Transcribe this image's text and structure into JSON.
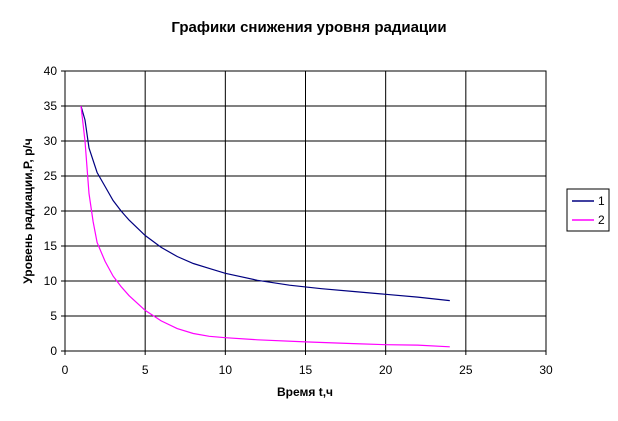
{
  "chart_data": {
    "type": "line",
    "title": "Графики снижения уровня радиации",
    "xlabel": "Время t,ч",
    "ylabel": "Уровень радиации,P, р/ч",
    "xlim": [
      0,
      30
    ],
    "ylim": [
      0,
      40
    ],
    "x_ticks": [
      "0",
      "5",
      "10",
      "15",
      "20",
      "25",
      "30"
    ],
    "y_ticks": [
      "0",
      "5",
      "10",
      "15",
      "20",
      "25",
      "30",
      "35",
      "40"
    ],
    "grid": true,
    "legend_position": "right",
    "series": [
      {
        "name": "1",
        "color": "#000080",
        "points": [
          [
            1,
            35
          ],
          [
            1.25,
            33
          ],
          [
            1.5,
            29
          ],
          [
            2,
            25.5
          ],
          [
            2.5,
            23.5
          ],
          [
            3,
            21.5
          ],
          [
            3.5,
            20
          ],
          [
            4,
            18.7
          ],
          [
            5,
            16.5
          ],
          [
            6,
            14.8
          ],
          [
            7,
            13.5
          ],
          [
            8,
            12.5
          ],
          [
            9,
            11.8
          ],
          [
            10,
            11.1
          ],
          [
            12,
            10.1
          ],
          [
            14,
            9.4
          ],
          [
            16,
            8.9
          ],
          [
            18,
            8.5
          ],
          [
            20,
            8.1
          ],
          [
            22,
            7.7
          ],
          [
            24,
            7.2
          ]
        ]
      },
      {
        "name": "2",
        "color": "#ff00ff",
        "points": [
          [
            1,
            35
          ],
          [
            1.25,
            30
          ],
          [
            1.5,
            22.5
          ],
          [
            1.75,
            18.5
          ],
          [
            2,
            15.5
          ],
          [
            2.5,
            12.8
          ],
          [
            3,
            10.7
          ],
          [
            3.5,
            9.2
          ],
          [
            4,
            7.9
          ],
          [
            5,
            5.8
          ],
          [
            6,
            4.3
          ],
          [
            7,
            3.2
          ],
          [
            8,
            2.5
          ],
          [
            9,
            2.1
          ],
          [
            10,
            1.9
          ],
          [
            12,
            1.6
          ],
          [
            15,
            1.3
          ],
          [
            18,
            1.05
          ],
          [
            20,
            0.9
          ],
          [
            22,
            0.85
          ],
          [
            24,
            0.6
          ]
        ]
      }
    ]
  }
}
